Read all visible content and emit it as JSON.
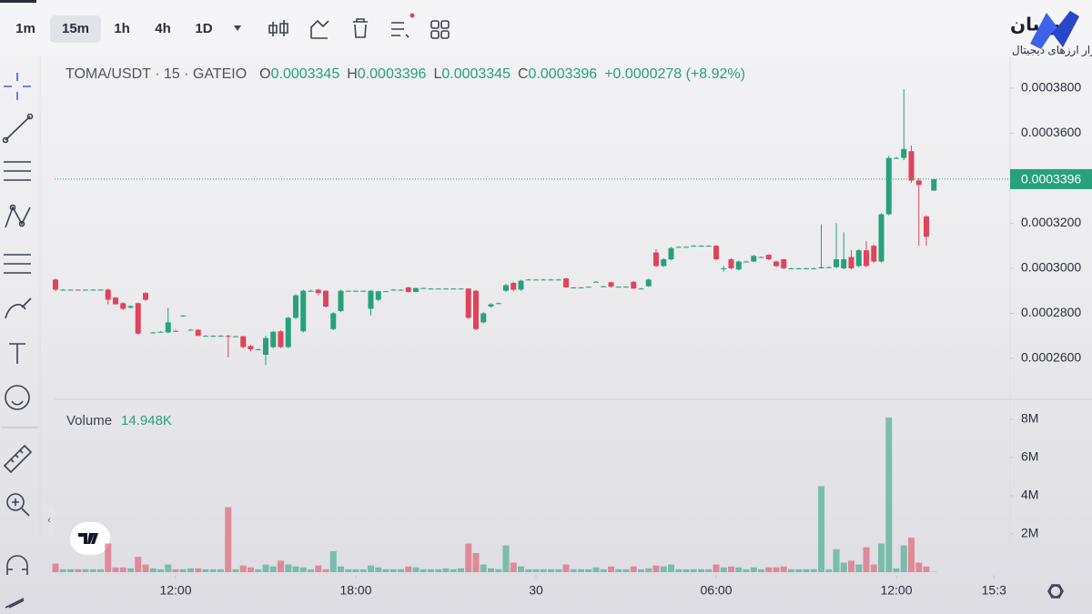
{
  "toolbar": {
    "intervals": [
      "1m",
      "15m",
      "1h",
      "4h",
      "1D"
    ]
  },
  "brand": {
    "name": "نوسان",
    "tagline": "مرجع بازار ارزهای دیجیتال"
  },
  "chart_data": [
    {
      "type": "candlestick",
      "symbol": "TOMA/USDT · 15 · GATEIO",
      "ohlc_labels": [
        "O",
        "H",
        "L",
        "C"
      ],
      "change": "+0.0000278 (+8.92%)",
      "up_color": "#26a17b",
      "down_color": "#e0445a",
      "xlim": [
        0,
        127
      ],
      "xticks": [
        {
          "value": 16,
          "label": "12:00"
        },
        {
          "value": 40,
          "label": "18:00"
        },
        {
          "value": 64,
          "label": "30"
        },
        {
          "value": 88,
          "label": "06:00"
        },
        {
          "value": 112,
          "label": "12:00"
        },
        {
          "value": 125,
          "label": "15:3"
        }
      ],
      "ylim": [
        0.0002422,
        0.0003828
      ],
      "yticks": [
        {
          "value": 0.00026,
          "label": "0.0002600"
        },
        {
          "value": 0.00028,
          "label": "0.0002800"
        },
        {
          "value": 0.0003,
          "label": "0.0003000"
        },
        {
          "value": 0.00032,
          "label": "0.0003200"
        },
        {
          "value": 0.00034,
          "label": "0.0003400"
        },
        {
          "value": 0.00036,
          "label": "0.0003600"
        },
        {
          "value": 0.00038,
          "label": "0.0003800"
        }
      ],
      "open": [
        0.000295,
        0.0002905,
        0.0002905,
        0.0002905,
        0.0002904,
        0.0002905,
        0.0002905,
        0.0002905,
        0.000287,
        0.0002845,
        0.0002825,
        0.0002845,
        0.000289,
        0.0002715,
        0.0002718,
        0.0002715,
        0.0002722,
        0.0002788,
        0.0002727,
        0.0002727,
        0.00027,
        0.00027,
        0.00027,
        0.00027,
        0.0002698,
        0.0002698,
        0.0002655,
        0.000264,
        0.0002616,
        0.000265,
        0.000272,
        0.000265,
        0.000278,
        0.000272,
        0.00029,
        0.0002905,
        0.00029,
        0.000273,
        0.000281,
        0.00029,
        0.00029,
        0.00029,
        0.000282,
        0.000286,
        0.0002898,
        0.0002905,
        0.0002905,
        0.0002915,
        0.0002895,
        0.0002912,
        0.000291,
        0.000291,
        0.000291,
        0.000291,
        0.000291,
        0.000291,
        0.00029,
        0.000276,
        0.000283,
        0.0002845,
        0.00029,
        0.0002935,
        0.0002905,
        0.000295,
        0.000295,
        0.000295,
        0.000295,
        0.000295,
        0.0002955,
        0.0002915,
        0.0002915,
        0.0002918,
        0.000294,
        0.000292,
        0.0002938,
        0.0002918,
        0.0002918,
        0.000294,
        0.000291,
        0.000292,
        0.000307,
        0.000301,
        0.000304,
        0.0003095,
        0.0003095,
        0.00031,
        0.00031,
        0.00031,
        0.00031,
        0.0003,
        0.000304,
        0.0002995,
        0.000303,
        0.000303,
        0.000305,
        0.000306,
        0.000303,
        0.000304,
        0.0003,
        0.0003,
        0.0003,
        0.0003,
        0.0003,
        0.0003005,
        0.0003005,
        0.0003,
        0.000305,
        0.000301,
        0.000308,
        0.00031,
        0.000303,
        0.000324,
        0.000349,
        0.000349,
        0.000352,
        0.000339,
        0.000323,
        0.0003345
      ],
      "high": [
        0.0002955,
        0.0002908,
        0.0002907,
        0.0002906,
        0.0002906,
        0.0002907,
        0.0002906,
        0.000291,
        0.0002872,
        0.000285,
        0.0002835,
        0.0002848,
        0.0002895,
        0.0002718,
        0.0002722,
        0.0002825,
        0.0002726,
        0.0002792,
        0.000273,
        0.000273,
        0.0002703,
        0.0002702,
        0.0002703,
        0.0002705,
        0.00027,
        0.00027,
        0.000266,
        0.0002643,
        0.00027,
        0.0002722,
        0.0002725,
        0.0002785,
        0.0002885,
        0.0002905,
        0.0002905,
        0.0002908,
        0.0002902,
        0.0002805,
        0.0002905,
        0.0002902,
        0.0002902,
        0.0002902,
        0.0002905,
        0.00029,
        0.00029,
        0.0002908,
        0.0002907,
        0.0002918,
        0.0002915,
        0.0002914,
        0.0002912,
        0.0002912,
        0.0002912,
        0.0002912,
        0.0002912,
        0.0002912,
        0.0002905,
        0.0002805,
        0.0002845,
        0.0002848,
        0.000293,
        0.000294,
        0.000295,
        0.0002953,
        0.0002953,
        0.0002953,
        0.0002953,
        0.0002953,
        0.0002958,
        0.0002917,
        0.0002917,
        0.000292,
        0.0002943,
        0.0002923,
        0.000294,
        0.000292,
        0.000292,
        0.0002943,
        0.0002913,
        0.0002955,
        0.0003085,
        0.0003045,
        0.0003095,
        0.0003098,
        0.0003098,
        0.0003103,
        0.0003103,
        0.0003103,
        0.0003102,
        0.000301,
        0.0003045,
        0.0003035,
        0.0003033,
        0.000306,
        0.0003053,
        0.0003062,
        0.0003035,
        0.0003042,
        0.0003003,
        0.0003003,
        0.0003003,
        0.0003003,
        0.0003195,
        0.0003008,
        0.00032,
        0.000316,
        0.000308,
        0.0003085,
        0.000312,
        0.0003105,
        0.0003245,
        0.00035,
        0.0003495,
        0.0003796,
        0.0003545,
        0.00034,
        0.0003235,
        0.0003396
      ],
      "low": [
        0.0002898,
        0.0002903,
        0.0002903,
        0.0002903,
        0.0002902,
        0.0002903,
        0.0002903,
        0.000284,
        0.0002838,
        0.0002815,
        0.0002822,
        0.0002705,
        0.0002855,
        0.0002712,
        0.0002715,
        0.0002712,
        0.0002718,
        0.0002785,
        0.0002724,
        0.0002698,
        0.0002698,
        0.0002697,
        0.0002698,
        0.0002604,
        0.0002695,
        0.0002645,
        0.000263,
        0.0002637,
        0.000257,
        0.0002645,
        0.0002645,
        0.0002645,
        0.0002775,
        0.0002715,
        0.0002897,
        0.000288,
        0.0002825,
        0.0002725,
        0.0002805,
        0.0002898,
        0.0002898,
        0.0002898,
        0.000279,
        0.0002855,
        0.0002896,
        0.0002902,
        0.0002903,
        0.0002892,
        0.0002893,
        0.000291,
        0.0002908,
        0.0002908,
        0.0002908,
        0.0002908,
        0.0002908,
        0.0002775,
        0.0002725,
        0.0002755,
        0.0002825,
        0.0002842,
        0.0002895,
        0.00029,
        0.00029,
        0.0002948,
        0.0002948,
        0.0002948,
        0.0002948,
        0.0002948,
        0.0002912,
        0.0002913,
        0.0002913,
        0.0002916,
        0.0002938,
        0.0002918,
        0.0002915,
        0.0002916,
        0.0002916,
        0.0002908,
        0.0002908,
        0.0002918,
        0.0003005,
        0.0003005,
        0.0003035,
        0.0003093,
        0.0003093,
        0.0003098,
        0.0003098,
        0.0003098,
        0.0003035,
        0.0002985,
        0.0002995,
        0.000299,
        0.0003028,
        0.0003028,
        0.0003048,
        0.0003035,
        0.0003005,
        0.0002995,
        0.0002998,
        0.0002998,
        0.0002998,
        0.0002998,
        0.0002998,
        0.0003003,
        0.0003,
        0.0002995,
        0.0002995,
        0.0003005,
        0.0003005,
        0.0003025,
        0.0003025,
        0.0003235,
        0.0003485,
        0.000348,
        0.000338,
        0.00031,
        0.00031,
        0.0003345
      ],
      "close": [
        0.0002905,
        0.0002905,
        0.0002905,
        0.0002904,
        0.0002905,
        0.0002905,
        0.0002905,
        0.000286,
        0.000284,
        0.000282,
        0.0002832,
        0.000271,
        0.000286,
        0.0002715,
        0.0002718,
        0.000276,
        0.000272,
        0.000279,
        0.0002727,
        0.00027,
        0.00027,
        0.00027,
        0.00027,
        0.0002698,
        0.0002698,
        0.000265,
        0.000264,
        0.000264,
        0.000269,
        0.0002718,
        0.000265,
        0.000278,
        0.000288,
        0.00029,
        0.00029,
        0.000289,
        0.000283,
        0.00028,
        0.00029,
        0.00029,
        0.00029,
        0.00029,
        0.00029,
        0.0002898,
        0.0002898,
        0.0002905,
        0.0002905,
        0.0002895,
        0.0002912,
        0.0002912,
        0.000291,
        0.000291,
        0.000291,
        0.000291,
        0.000291,
        0.000278,
        0.000273,
        0.00028,
        0.000284,
        0.0002845,
        0.0002925,
        0.0002905,
        0.0002945,
        0.000295,
        0.000295,
        0.000295,
        0.000295,
        0.000295,
        0.0002915,
        0.0002915,
        0.0002915,
        0.0002918,
        0.000294,
        0.000292,
        0.0002918,
        0.0002918,
        0.0002918,
        0.000291,
        0.000291,
        0.000295,
        0.000301,
        0.000304,
        0.000309,
        0.0003095,
        0.0003095,
        0.00031,
        0.00031,
        0.00031,
        0.000304,
        0.0003,
        0.0003,
        0.000303,
        0.000303,
        0.0003055,
        0.000305,
        0.000304,
        0.000301,
        0.0003,
        0.0003,
        0.0003,
        0.0003,
        0.0003,
        0.0003005,
        0.0003005,
        0.000304,
        0.000304,
        0.0003,
        0.000308,
        0.000301,
        0.000303,
        0.000324,
        0.000349,
        0.000349,
        0.000353,
        0.000339,
        0.000337,
        0.000314,
        0.0003396
      ]
    },
    {
      "type": "volume",
      "title": "Volume",
      "current_value": "14.948K",
      "ylim": [
        0,
        9000000
      ],
      "yticks": [
        {
          "value": 2000000,
          "label": "2M"
        },
        {
          "value": 4000000,
          "label": "4M"
        },
        {
          "value": 6000000,
          "label": "6M"
        },
        {
          "value": 8000000,
          "label": "8M"
        }
      ],
      "values": [
        450000,
        150000,
        150000,
        150000,
        150000,
        150000,
        150000,
        1500000,
        250000,
        250000,
        200000,
        800000,
        400000,
        200000,
        150000,
        400000,
        150000,
        150000,
        200000,
        200000,
        150000,
        150000,
        150000,
        3400000,
        150000,
        350000,
        250000,
        150000,
        400000,
        300000,
        600000,
        400000,
        300000,
        250000,
        150000,
        350000,
        150000,
        1100000,
        300000,
        150000,
        150000,
        150000,
        350000,
        250000,
        150000,
        150000,
        150000,
        300000,
        250000,
        150000,
        150000,
        150000,
        200000,
        150000,
        200000,
        1500000,
        1000000,
        400000,
        200000,
        150000,
        1400000,
        500000,
        300000,
        150000,
        150000,
        150000,
        150000,
        150000,
        400000,
        150000,
        150000,
        150000,
        250000,
        150000,
        300000,
        150000,
        150000,
        300000,
        150000,
        200000,
        350000,
        300000,
        400000,
        150000,
        150000,
        150000,
        150000,
        150000,
        400000,
        250000,
        300000,
        250000,
        150000,
        250000,
        150000,
        250000,
        250000,
        300000,
        150000,
        150000,
        150000,
        150000,
        4500000,
        150000,
        1200000,
        500000,
        600000,
        400000,
        1300000,
        400000,
        1500000,
        8100000,
        200000,
        1400000,
        1800000,
        500000,
        300000,
        14948
      ]
    }
  ]
}
